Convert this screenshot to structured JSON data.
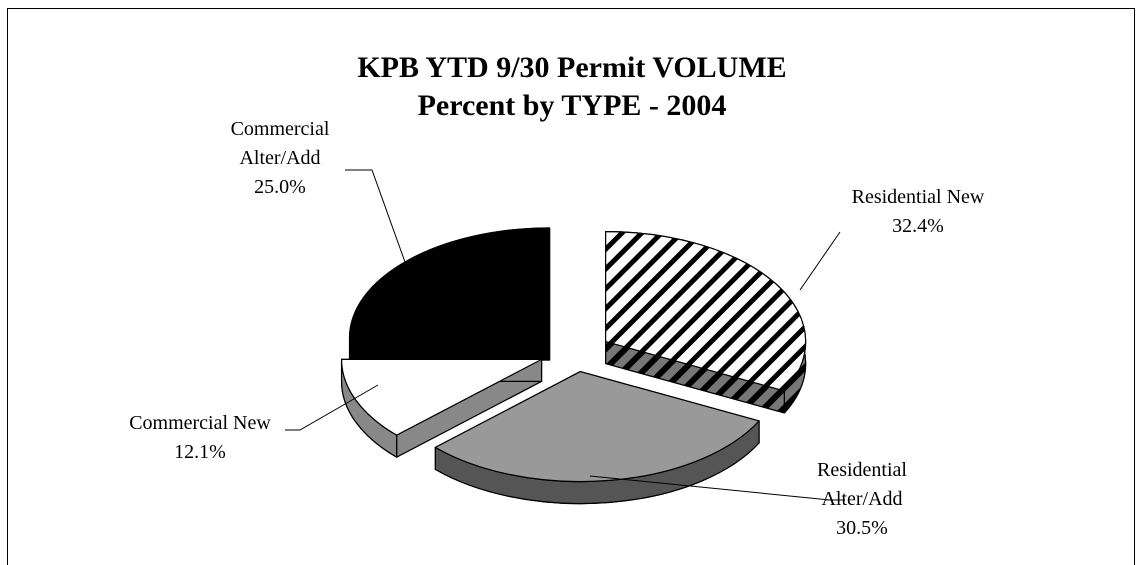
{
  "chart_data": {
    "type": "pie3d",
    "title": "KPB YTD 9/30 Permit VOLUME",
    "subtitle": "Percent by TYPE - 2004",
    "categories": [
      "Residential New",
      "Residential Alter/Add",
      "Commercial New",
      "Commercial Alter/Add"
    ],
    "values": [
      32.4,
      30.5,
      12.1,
      25.0
    ],
    "value_labels": [
      "32.4%",
      "30.5%",
      "12.1%",
      "25.0%"
    ],
    "colors": [
      "#ffffff",
      "#999999",
      "#ffffff",
      "#000000"
    ],
    "side_colors": [
      "#555555",
      "#555555",
      "#888888",
      "#000000"
    ],
    "hatch": [
      true,
      false,
      false,
      false
    ]
  }
}
